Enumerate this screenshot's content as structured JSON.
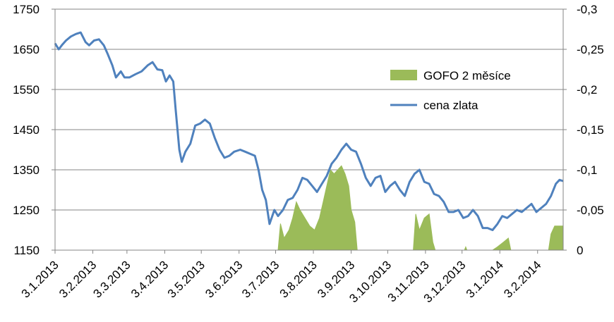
{
  "chart_data": {
    "type": "line",
    "x_ticks": [
      "3.1.2013",
      "3.2.2013",
      "3.3.2013",
      "3.4.2013",
      "3.5.2013",
      "3.6.2013",
      "3.7.2013",
      "3.8.2013",
      "3.9.2013",
      "3.10.2013",
      "3.11.2013",
      "3.12.2013",
      "3.1.2014",
      "3.2.2014"
    ],
    "y_left": {
      "min": 1150,
      "max": 1750,
      "ticks": [
        1750,
        1650,
        1550,
        1450,
        1350,
        1250,
        1150
      ]
    },
    "y_right": {
      "min": 0,
      "max": -0.3,
      "ticks": [
        "-0,3",
        "-0,25",
        "-0,2",
        "-0,15",
        "-0,1",
        "-0,05",
        "0"
      ]
    },
    "x_range": [
      "2013-01-03",
      "2014-02-24"
    ],
    "grid": "horizontal",
    "legend": {
      "position": "right-middle",
      "entries": [
        "GOFO 2 měsíce",
        "cena zlata"
      ]
    },
    "colors": {
      "gofo": "#9bbb59",
      "gold": "#4f81bd",
      "grid": "#868686"
    },
    "series": [
      {
        "name": "cena zlata",
        "axis": "left",
        "points": [
          [
            "2013-01-03",
            1665
          ],
          [
            "2013-01-06",
            1650
          ],
          [
            "2013-01-09",
            1662
          ],
          [
            "2013-01-12",
            1672
          ],
          [
            "2013-01-16",
            1682
          ],
          [
            "2013-01-20",
            1688
          ],
          [
            "2013-01-24",
            1692
          ],
          [
            "2013-01-28",
            1668
          ],
          [
            "2013-01-31",
            1660
          ],
          [
            "2013-02-04",
            1672
          ],
          [
            "2013-02-08",
            1675
          ],
          [
            "2013-02-12",
            1660
          ],
          [
            "2013-02-15",
            1640
          ],
          [
            "2013-02-19",
            1610
          ],
          [
            "2013-02-22",
            1580
          ],
          [
            "2013-02-26",
            1595
          ],
          [
            "2013-03-01",
            1580
          ],
          [
            "2013-03-05",
            1580
          ],
          [
            "2013-03-10",
            1588
          ],
          [
            "2013-03-15",
            1595
          ],
          [
            "2013-03-20",
            1610
          ],
          [
            "2013-03-24",
            1618
          ],
          [
            "2013-03-28",
            1600
          ],
          [
            "2013-04-01",
            1598
          ],
          [
            "2013-04-04",
            1570
          ],
          [
            "2013-04-07",
            1585
          ],
          [
            "2013-04-10",
            1570
          ],
          [
            "2013-04-12",
            1500
          ],
          [
            "2013-04-15",
            1400
          ],
          [
            "2013-04-17",
            1370
          ],
          [
            "2013-04-20",
            1395
          ],
          [
            "2013-04-24",
            1415
          ],
          [
            "2013-04-28",
            1460
          ],
          [
            "2013-05-02",
            1465
          ],
          [
            "2013-05-06",
            1475
          ],
          [
            "2013-05-10",
            1465
          ],
          [
            "2013-05-14",
            1430
          ],
          [
            "2013-05-18",
            1400
          ],
          [
            "2013-05-22",
            1380
          ],
          [
            "2013-05-26",
            1385
          ],
          [
            "2013-05-30",
            1395
          ],
          [
            "2013-06-04",
            1400
          ],
          [
            "2013-06-08",
            1395
          ],
          [
            "2013-06-12",
            1390
          ],
          [
            "2013-06-16",
            1385
          ],
          [
            "2013-06-19",
            1350
          ],
          [
            "2013-06-22",
            1300
          ],
          [
            "2013-06-25",
            1275
          ],
          [
            "2013-06-28",
            1215
          ],
          [
            "2013-07-02",
            1250
          ],
          [
            "2013-07-05",
            1235
          ],
          [
            "2013-07-09",
            1250
          ],
          [
            "2013-07-13",
            1275
          ],
          [
            "2013-07-17",
            1280
          ],
          [
            "2013-07-21",
            1300
          ],
          [
            "2013-07-25",
            1330
          ],
          [
            "2013-07-29",
            1325
          ],
          [
            "2013-08-02",
            1310
          ],
          [
            "2013-08-06",
            1295
          ],
          [
            "2013-08-10",
            1315
          ],
          [
            "2013-08-14",
            1335
          ],
          [
            "2013-08-18",
            1365
          ],
          [
            "2013-08-22",
            1380
          ],
          [
            "2013-08-26",
            1400
          ],
          [
            "2013-08-30",
            1415
          ],
          [
            "2013-09-03",
            1400
          ],
          [
            "2013-09-07",
            1395
          ],
          [
            "2013-09-11",
            1365
          ],
          [
            "2013-09-15",
            1330
          ],
          [
            "2013-09-19",
            1310
          ],
          [
            "2013-09-23",
            1330
          ],
          [
            "2013-09-27",
            1335
          ],
          [
            "2013-10-01",
            1295
          ],
          [
            "2013-10-05",
            1310
          ],
          [
            "2013-10-09",
            1320
          ],
          [
            "2013-10-13",
            1300
          ],
          [
            "2013-10-17",
            1285
          ],
          [
            "2013-10-21",
            1320
          ],
          [
            "2013-10-25",
            1340
          ],
          [
            "2013-10-29",
            1350
          ],
          [
            "2013-11-02",
            1320
          ],
          [
            "2013-11-06",
            1315
          ],
          [
            "2013-11-10",
            1290
          ],
          [
            "2013-11-14",
            1285
          ],
          [
            "2013-11-18",
            1270
          ],
          [
            "2013-11-22",
            1245
          ],
          [
            "2013-11-26",
            1245
          ],
          [
            "2013-11-30",
            1250
          ],
          [
            "2013-12-04",
            1230
          ],
          [
            "2013-12-08",
            1235
          ],
          [
            "2013-12-12",
            1250
          ],
          [
            "2013-12-16",
            1235
          ],
          [
            "2013-12-20",
            1205
          ],
          [
            "2013-12-24",
            1205
          ],
          [
            "2013-12-28",
            1200
          ],
          [
            "2014-01-01",
            1215
          ],
          [
            "2014-01-05",
            1235
          ],
          [
            "2014-01-09",
            1230
          ],
          [
            "2014-01-13",
            1240
          ],
          [
            "2014-01-17",
            1250
          ],
          [
            "2014-01-21",
            1245
          ],
          [
            "2014-01-25",
            1255
          ],
          [
            "2014-01-29",
            1265
          ],
          [
            "2014-02-02",
            1245
          ],
          [
            "2014-02-06",
            1255
          ],
          [
            "2014-02-10",
            1265
          ],
          [
            "2014-02-14",
            1285
          ],
          [
            "2014-02-18",
            1315
          ],
          [
            "2014-02-21",
            1325
          ],
          [
            "2014-02-24",
            1322
          ]
        ]
      },
      {
        "name": "GOFO 2 měsíce",
        "axis": "right",
        "type": "area",
        "points": [
          [
            "2013-01-03",
            0
          ],
          [
            "2013-07-05",
            0
          ],
          [
            "2013-07-07",
            -0.033
          ],
          [
            "2013-07-10",
            -0.015
          ],
          [
            "2013-07-14",
            -0.025
          ],
          [
            "2013-07-17",
            -0.04
          ],
          [
            "2013-07-20",
            -0.06
          ],
          [
            "2013-07-23",
            -0.05
          ],
          [
            "2013-07-27",
            -0.04
          ],
          [
            "2013-07-31",
            -0.03
          ],
          [
            "2013-08-04",
            -0.025
          ],
          [
            "2013-08-08",
            -0.04
          ],
          [
            "2013-08-11",
            -0.06
          ],
          [
            "2013-08-14",
            -0.08
          ],
          [
            "2013-08-17",
            -0.1
          ],
          [
            "2013-08-20",
            -0.095
          ],
          [
            "2013-08-23",
            -0.1
          ],
          [
            "2013-08-26",
            -0.105
          ],
          [
            "2013-08-29",
            -0.095
          ],
          [
            "2013-09-01",
            -0.08
          ],
          [
            "2013-09-03",
            -0.05
          ],
          [
            "2013-09-06",
            -0.035
          ],
          [
            "2013-09-08",
            0
          ],
          [
            "2013-10-24",
            0
          ],
          [
            "2013-10-26",
            -0.045
          ],
          [
            "2013-10-29",
            -0.025
          ],
          [
            "2013-11-02",
            -0.04
          ],
          [
            "2013-11-06",
            -0.045
          ],
          [
            "2013-11-09",
            -0.01
          ],
          [
            "2013-11-11",
            0
          ],
          [
            "2013-12-05",
            0
          ],
          [
            "2013-12-06",
            -0.004
          ],
          [
            "2013-12-07",
            0
          ],
          [
            "2013-12-28",
            0
          ],
          [
            "2014-01-01",
            -0.004
          ],
          [
            "2014-01-06",
            -0.01
          ],
          [
            "2014-01-10",
            -0.015
          ],
          [
            "2014-01-12",
            0
          ],
          [
            "2014-02-12",
            0
          ],
          [
            "2014-02-14",
            -0.02
          ],
          [
            "2014-02-17",
            -0.03
          ],
          [
            "2014-02-20",
            -0.03
          ],
          [
            "2014-02-24",
            -0.03
          ]
        ]
      }
    ]
  }
}
